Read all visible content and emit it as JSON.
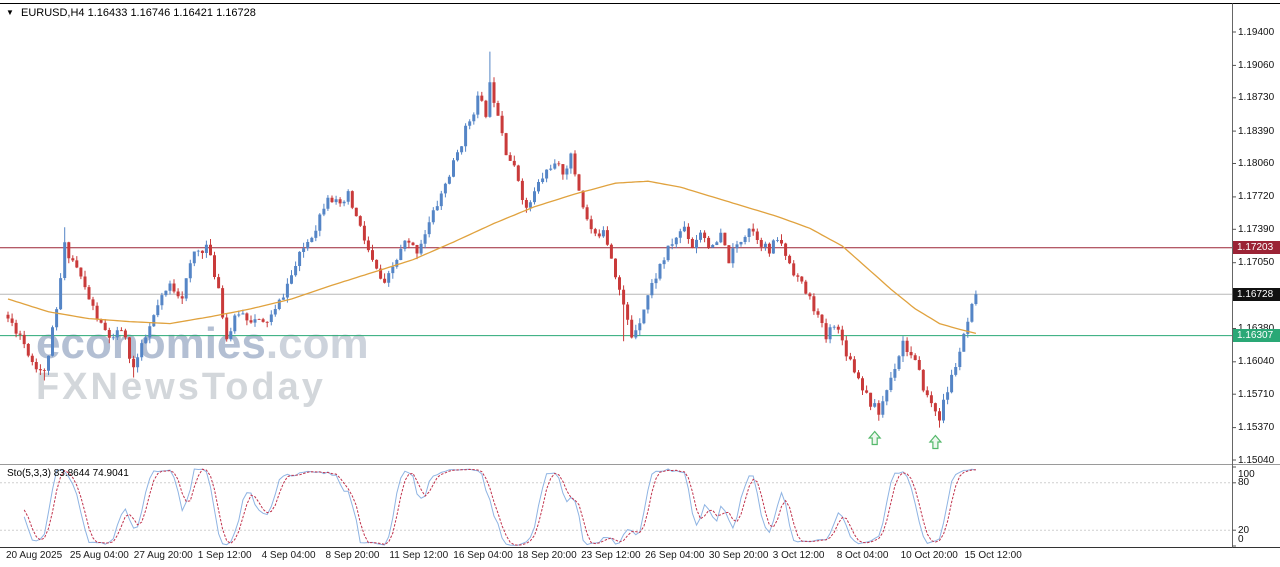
{
  "header": {
    "dropdown_icon": "▼",
    "symbol": "EURUSD,H4",
    "ohlc": "1.16433 1.16746 1.16421 1.16728"
  },
  "watermark": {
    "brand": "economies",
    "domain": ".com",
    "tagline": "FXNewsToday"
  },
  "colors": {
    "bull": "#5585c6",
    "bear": "#c93a3a",
    "ma": "#e0a23e",
    "sto_k": "#8fb4e3",
    "sto_d": "#c0334d",
    "hline_resistance": "#9b2335",
    "hline_support": "#2aa876",
    "current_line": "#b8b8b8",
    "current_box": "#111111",
    "arrow": "#53b86a",
    "watermark_brand": "#b3bfd3",
    "watermark_domain": "#cdd3dc",
    "watermark_tagline": "#d3d7db",
    "axis_text": "#111111"
  },
  "chart_data": {
    "type": "candlestick",
    "title": "EURUSD,H4",
    "timeframe": "H4",
    "candle_count": 240,
    "last_close": 1.16728,
    "y_axis": {
      "min": 1.1504,
      "max": 1.194,
      "tick_labels": [
        1.194,
        1.1906,
        1.1873,
        1.1839,
        1.1806,
        1.1772,
        1.1739,
        1.1705,
        1.1638,
        1.1604,
        1.1571,
        1.1537,
        1.1504
      ]
    },
    "x_labels": [
      "20 Aug 2025",
      "25 Aug 04:00",
      "27 Aug 20:00",
      "1 Sep 12:00",
      "4 Sep 04:00",
      "8 Sep 20:00",
      "11 Sep 12:00",
      "16 Sep 04:00",
      "18 Sep 20:00",
      "23 Sep 12:00",
      "26 Sep 04:00",
      "30 Sep 20:00",
      "3 Oct 12:00",
      "8 Oct 04:00",
      "10 Oct 20:00",
      "15 Oct 12:00"
    ],
    "close_waypoints": [
      [
        0,
        1.1648
      ],
      [
        3,
        1.1632
      ],
      [
        6,
        1.1605
      ],
      [
        9,
        1.1592
      ],
      [
        12,
        1.1655
      ],
      [
        14,
        1.1722
      ],
      [
        17,
        1.17
      ],
      [
        20,
        1.1668
      ],
      [
        23,
        1.164
      ],
      [
        26,
        1.1625
      ],
      [
        28,
        1.1638
      ],
      [
        31,
        1.1598
      ],
      [
        34,
        1.1628
      ],
      [
        37,
        1.166
      ],
      [
        40,
        1.1682
      ],
      [
        43,
        1.1672
      ],
      [
        46,
        1.1715
      ],
      [
        49,
        1.1722
      ],
      [
        52,
        1.168
      ],
      [
        54,
        1.1628
      ],
      [
        57,
        1.1655
      ],
      [
        60,
        1.1648
      ],
      [
        63,
        1.1642
      ],
      [
        66,
        1.1655
      ],
      [
        70,
        1.1692
      ],
      [
        73,
        1.172
      ],
      [
        76,
        1.1742
      ],
      [
        79,
        1.1776
      ],
      [
        82,
        1.176
      ],
      [
        84,
        1.1773
      ],
      [
        87,
        1.174
      ],
      [
        90,
        1.1705
      ],
      [
        93,
        1.168
      ],
      [
        95,
        1.17
      ],
      [
        98,
        1.1725
      ],
      [
        101,
        1.1718
      ],
      [
        104,
        1.1745
      ],
      [
        107,
        1.1775
      ],
      [
        110,
        1.1805
      ],
      [
        113,
        1.184
      ],
      [
        116,
        1.1872
      ],
      [
        118,
        1.1858
      ],
      [
        119,
        1.1885
      ],
      [
        121,
        1.186
      ],
      [
        123,
        1.182
      ],
      [
        126,
        1.179
      ],
      [
        128,
        1.1758
      ],
      [
        131,
        1.1785
      ],
      [
        134,
        1.1805
      ],
      [
        137,
        1.1798
      ],
      [
        139,
        1.1812
      ],
      [
        141,
        1.178
      ],
      [
        143,
        1.1748
      ],
      [
        145,
        1.173
      ],
      [
        147,
        1.1742
      ],
      [
        149,
        1.1712
      ],
      [
        152,
        1.166
      ],
      [
        154,
        1.163
      ],
      [
        156,
        1.1648
      ],
      [
        158,
        1.1672
      ],
      [
        161,
        1.1702
      ],
      [
        164,
        1.1725
      ],
      [
        167,
        1.1742
      ],
      [
        169,
        1.1722
      ],
      [
        171,
        1.1738
      ],
      [
        174,
        1.1718
      ],
      [
        176,
        1.1732
      ],
      [
        178,
        1.1708
      ],
      [
        180,
        1.1722
      ],
      [
        183,
        1.1742
      ],
      [
        185,
        1.1732
      ],
      [
        188,
        1.1715
      ],
      [
        190,
        1.173
      ],
      [
        193,
        1.1705
      ],
      [
        196,
        1.1682
      ],
      [
        199,
        1.166
      ],
      [
        202,
        1.1628
      ],
      [
        204,
        1.1645
      ],
      [
        207,
        1.1615
      ],
      [
        210,
        1.1588
      ],
      [
        213,
        1.1562
      ],
      [
        215,
        1.1552
      ],
      [
        218,
        1.1588
      ],
      [
        221,
        1.1625
      ],
      [
        224,
        1.1602
      ],
      [
        227,
        1.1568
      ],
      [
        230,
        1.1548
      ],
      [
        233,
        1.1588
      ],
      [
        236,
        1.1628
      ],
      [
        239,
        1.16728
      ]
    ],
    "ma_waypoints": [
      [
        0,
        1.1668
      ],
      [
        10,
        1.1655
      ],
      [
        20,
        1.1648
      ],
      [
        30,
        1.1645
      ],
      [
        40,
        1.1643
      ],
      [
        50,
        1.165
      ],
      [
        60,
        1.1658
      ],
      [
        70,
        1.1668
      ],
      [
        80,
        1.1682
      ],
      [
        90,
        1.1695
      ],
      [
        100,
        1.1708
      ],
      [
        110,
        1.1726
      ],
      [
        120,
        1.1745
      ],
      [
        130,
        1.1762
      ],
      [
        140,
        1.1775
      ],
      [
        150,
        1.1786
      ],
      [
        158,
        1.1788
      ],
      [
        166,
        1.1782
      ],
      [
        174,
        1.1772
      ],
      [
        182,
        1.1762
      ],
      [
        190,
        1.1752
      ],
      [
        198,
        1.174
      ],
      [
        206,
        1.1722
      ],
      [
        212,
        1.17
      ],
      [
        218,
        1.1678
      ],
      [
        224,
        1.1658
      ],
      [
        230,
        1.1643
      ],
      [
        235,
        1.1637
      ],
      [
        239,
        1.1633
      ]
    ],
    "wick_spikes": [
      {
        "index": 9,
        "side": "low",
        "price": 1.1585
      },
      {
        "index": 14,
        "side": "high",
        "price": 1.1741
      },
      {
        "index": 31,
        "side": "low",
        "price": 1.1588
      },
      {
        "index": 119,
        "side": "high",
        "price": 1.192
      },
      {
        "index": 152,
        "side": "low",
        "price": 1.1625
      },
      {
        "index": 215,
        "side": "low",
        "price": 1.1544
      },
      {
        "index": 230,
        "side": "low",
        "price": 1.1537
      }
    ],
    "hlines": [
      {
        "price": 1.17203,
        "label": "1.17203",
        "role": "resistance"
      },
      {
        "price": 1.16728,
        "label": "1.16728",
        "role": "current"
      },
      {
        "price": 1.16307,
        "label": "1.16307",
        "role": "support"
      }
    ],
    "arrows": [
      {
        "index": 214,
        "price": 1.1533
      },
      {
        "index": 229,
        "price": 1.1529
      }
    ],
    "stochastic": {
      "label": "Sto(5,3,3) 83.8644 74.9041",
      "k_period": 5,
      "slowing": 3,
      "d_period": 3,
      "last_k": 83.8644,
      "last_d": 74.9041,
      "levels": [
        100,
        80,
        20,
        0
      ],
      "range": [
        0,
        100
      ]
    }
  }
}
